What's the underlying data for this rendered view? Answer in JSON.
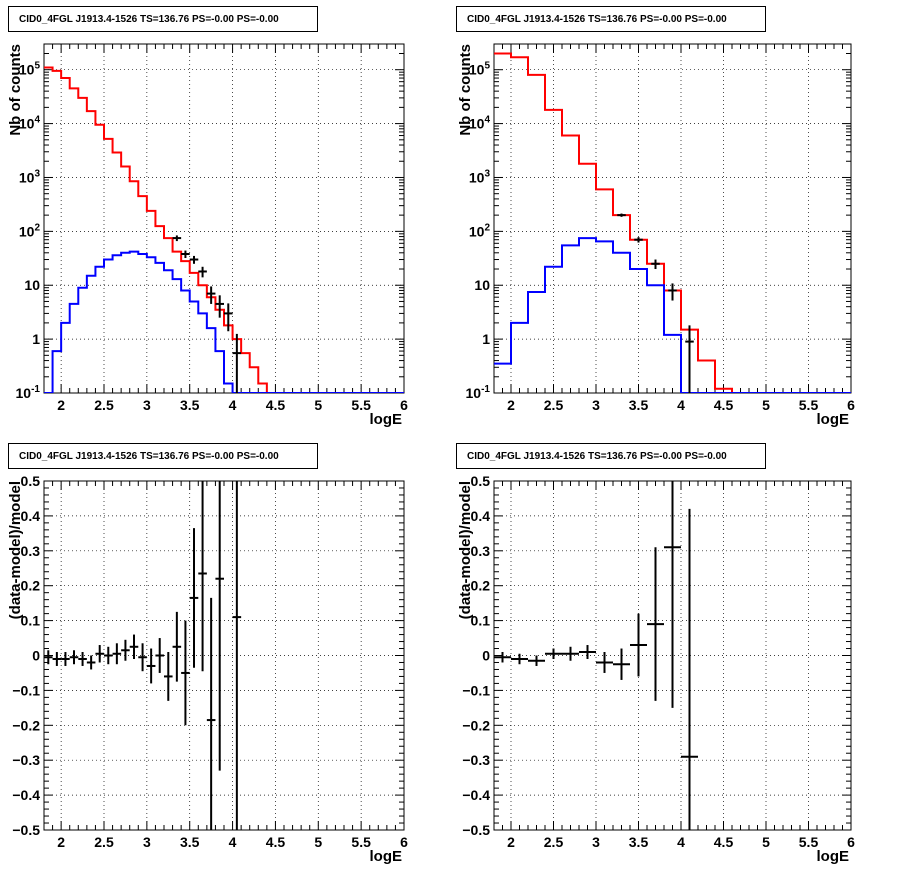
{
  "chart_data": [
    {
      "type": "line",
      "title": "CID0_4FGL J1913.4-1526 TS=136.76 PS=-0.00 PS=-0.00",
      "xlabel": "logE",
      "ylabel": "Nb of counts",
      "xlim": [
        1.8,
        6
      ],
      "ylim": [
        0.1,
        300000
      ],
      "yscale": "log",
      "grid": true,
      "x_ticks": [
        "2",
        "2.5",
        "3",
        "3.5",
        "4",
        "4.5",
        "5",
        "5.5",
        "6"
      ],
      "y_ticks": [
        "10^-1",
        "1",
        "10",
        "10^2",
        "10^3",
        "10^4",
        "10^5"
      ],
      "bin_edges": [
        1.8,
        1.9,
        2.0,
        2.1,
        2.2,
        2.3,
        2.4,
        2.5,
        2.6,
        2.7,
        2.8,
        2.9,
        3.0,
        3.1,
        3.2,
        3.3,
        3.4,
        3.5,
        3.6,
        3.7,
        3.8,
        3.9,
        4.0,
        4.1,
        4.2,
        4.3,
        4.4,
        6.0
      ],
      "series": [
        {
          "color": "#ff0000",
          "style": "histogram",
          "values": [
            110000,
            95000,
            70000,
            45000,
            30000,
            17000,
            9500,
            5200,
            2900,
            1600,
            850,
            450,
            240,
            125,
            75,
            42,
            28,
            17,
            10,
            6,
            3.5,
            1.8,
            1.0,
            0.55,
            0.3,
            0.15,
            0.1
          ]
        },
        {
          "color": "#0000ff",
          "style": "histogram",
          "values": [
            0.1,
            0.6,
            2.0,
            4.5,
            9,
            15,
            22,
            30,
            36,
            40,
            42,
            38,
            33,
            26,
            19,
            13,
            8,
            5,
            3,
            1.6,
            0.6,
            0.15,
            0.1,
            0.1,
            0.1,
            0.1,
            0.1
          ]
        },
        {
          "color": "#000000",
          "style": "points",
          "x": [
            3.35,
            3.45,
            3.55,
            3.65,
            3.75,
            3.85,
            3.95,
            4.05
          ],
          "y": [
            75,
            38,
            30,
            18,
            7,
            4.5,
            3,
            0.55
          ],
          "err": [
            9,
            6,
            5,
            4,
            2.5,
            2,
            1.6,
            0.7
          ]
        }
      ]
    },
    {
      "type": "line",
      "title": "CID0_4FGL J1913.4-1526 TS=136.76 PS=-0.00 PS=-0.00",
      "xlabel": "logE",
      "ylabel": "Nb of counts",
      "xlim": [
        1.8,
        6
      ],
      "ylim": [
        0.1,
        300000
      ],
      "yscale": "log",
      "grid": true,
      "x_ticks": [
        "2",
        "2.5",
        "3",
        "3.5",
        "4",
        "4.5",
        "5",
        "5.5",
        "6"
      ],
      "y_ticks": [
        "10^-1",
        "1",
        "10",
        "10^2",
        "10^3",
        "10^4",
        "10^5"
      ],
      "bin_edges": [
        1.8,
        2.0,
        2.2,
        2.4,
        2.6,
        2.8,
        3.0,
        3.2,
        3.4,
        3.6,
        3.8,
        4.0,
        4.2,
        4.4,
        4.6,
        6.0
      ],
      "series": [
        {
          "color": "#ff0000",
          "style": "histogram",
          "values": [
            200000,
            170000,
            80000,
            18000,
            6000,
            1800,
            600,
            200,
            70,
            25,
            8,
            1.5,
            0.4,
            0.12,
            0.1
          ]
        },
        {
          "color": "#0000ff",
          "style": "histogram",
          "values": [
            0.35,
            2.0,
            7.5,
            22,
            55,
            75,
            65,
            40,
            20,
            10,
            1.2,
            0.1,
            0.1,
            0.1,
            0.1
          ]
        },
        {
          "color": "#000000",
          "style": "points",
          "x": [
            3.3,
            3.5,
            3.7,
            3.9,
            4.1
          ],
          "y": [
            200,
            70,
            25,
            8,
            0.9
          ],
          "err": [
            14,
            8,
            5,
            2.8,
            0.9
          ]
        }
      ]
    },
    {
      "type": "scatter",
      "title": "CID0_4FGL J1913.4-1526 TS=136.76 PS=-0.00 PS=-0.00",
      "xlabel": "logE",
      "ylabel": "(data-model)/model",
      "xlim": [
        1.8,
        6
      ],
      "ylim": [
        -0.5,
        0.5
      ],
      "grid": true,
      "x_ticks": [
        "2",
        "2.5",
        "3",
        "3.5",
        "4",
        "4.5",
        "5",
        "5.5",
        "6"
      ],
      "y_ticks": [
        "-0.5",
        "-0.4",
        "-0.3",
        "-0.2",
        "-0.1",
        "0",
        "0.1",
        "0.2",
        "0.3",
        "0.4",
        "0.5"
      ],
      "points": {
        "x": [
          1.85,
          1.95,
          2.05,
          2.15,
          2.25,
          2.35,
          2.45,
          2.55,
          2.65,
          2.75,
          2.85,
          2.95,
          3.05,
          3.15,
          3.25,
          3.35,
          3.45,
          3.55,
          3.65,
          3.75,
          3.85,
          4.05
        ],
        "y": [
          -0.005,
          -0.01,
          -0.01,
          -0.005,
          -0.01,
          -0.02,
          0.005,
          0.0,
          0.005,
          0.015,
          0.025,
          -0.005,
          -0.03,
          0.0,
          -0.06,
          0.025,
          -0.05,
          0.165,
          0.235,
          -0.185,
          0.22,
          0.11
        ],
        "err": [
          0.02,
          0.02,
          0.02,
          0.02,
          0.02,
          0.02,
          0.025,
          0.025,
          0.03,
          0.03,
          0.035,
          0.04,
          0.05,
          0.05,
          0.07,
          0.1,
          0.15,
          0.2,
          0.28,
          0.35,
          0.55,
          0.75
        ]
      }
    },
    {
      "type": "scatter",
      "title": "CID0_4FGL J1913.4-1526 TS=136.76 PS=-0.00 PS=-0.00",
      "xlabel": "logE",
      "ylabel": "(data-model)/model",
      "xlim": [
        1.8,
        6
      ],
      "ylim": [
        -0.5,
        0.5
      ],
      "grid": true,
      "x_ticks": [
        "2",
        "2.5",
        "3",
        "3.5",
        "4",
        "4.5",
        "5",
        "5.5",
        "6"
      ],
      "y_ticks": [
        "-0.5",
        "-0.4",
        "-0.3",
        "-0.2",
        "-0.1",
        "0",
        "0.1",
        "0.2",
        "0.3",
        "0.4",
        "0.5"
      ],
      "points": {
        "x": [
          1.9,
          2.1,
          2.3,
          2.5,
          2.7,
          2.9,
          3.1,
          3.3,
          3.5,
          3.7,
          3.9,
          4.1
        ],
        "y": [
          -0.005,
          -0.01,
          -0.015,
          0.005,
          0.005,
          0.01,
          -0.02,
          -0.025,
          0.03,
          0.09,
          0.31,
          -0.29
        ],
        "err": [
          0.015,
          0.015,
          0.015,
          0.015,
          0.02,
          0.02,
          0.03,
          0.045,
          0.09,
          0.22,
          0.46,
          0.71
        ]
      }
    }
  ]
}
